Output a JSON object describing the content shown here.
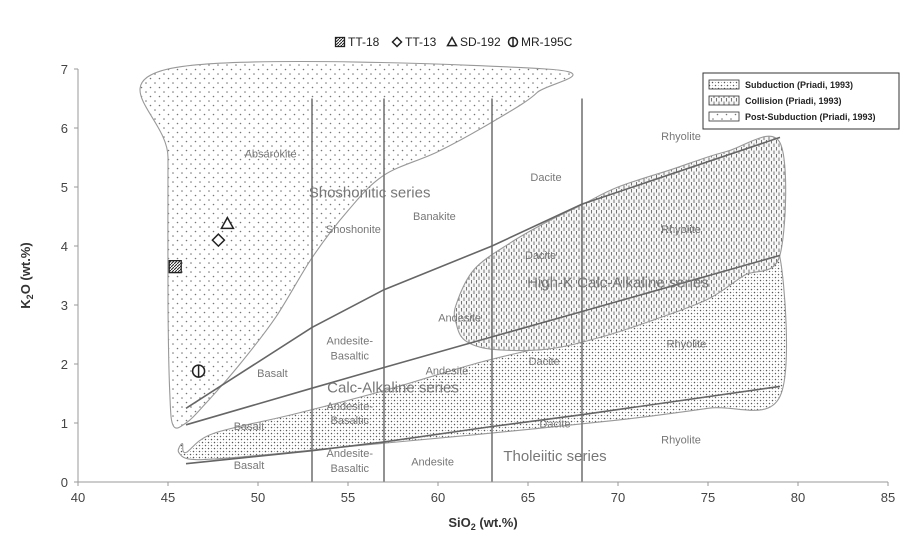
{
  "chart_data": {
    "type": "scatter",
    "xlabel_base": "SiO",
    "xlabel_sub": "2",
    "xlabel_unit": " (wt.%)",
    "ylabel_base": "K",
    "ylabel_sub": "2",
    "ylabel_rest": "O (wt.%)",
    "xlim": [
      40,
      85
    ],
    "ylim": [
      0,
      7
    ],
    "xticks": [
      40,
      45,
      50,
      55,
      60,
      65,
      70,
      75,
      80,
      85
    ],
    "yticks": [
      0,
      1,
      2,
      3,
      4,
      5,
      6,
      7
    ],
    "series": [
      {
        "name": "TT-18",
        "marker": "square-hatched",
        "points": [
          [
            45.4,
            3.65
          ]
        ]
      },
      {
        "name": "TT-13",
        "marker": "diamond",
        "points": [
          [
            47.8,
            4.1
          ]
        ]
      },
      {
        "name": "SD-192",
        "marker": "triangle",
        "points": [
          [
            48.3,
            4.38
          ]
        ]
      },
      {
        "name": "MR-195C",
        "marker": "circle-vline",
        "points": [
          [
            46.7,
            1.88
          ]
        ]
      }
    ],
    "region_legend": [
      {
        "label": "Subduction (Priadi, 1993)",
        "pattern": "dense-dots"
      },
      {
        "label": "Collision (Priadi, 1993)",
        "pattern": "vertical-dashes"
      },
      {
        "label": "Post-Subduction (Priadi, 1993)",
        "pattern": "sparse-dots"
      }
    ],
    "regions": [
      {
        "name": "Post-Subduction (Priadi, 1993)",
        "pattern": "sparse-dots",
        "outline": [
          [
            45,
            7
          ],
          [
            66,
            7
          ],
          [
            65.5,
            6.6
          ],
          [
            63,
            6.1
          ],
          [
            60,
            5.6
          ],
          [
            57,
            5.2
          ],
          [
            55,
            4.6
          ],
          [
            53,
            3.8
          ],
          [
            51,
            2.8
          ],
          [
            49,
            2.0
          ],
          [
            47,
            1.3
          ],
          [
            46,
            1.0
          ],
          [
            45.3,
            0.95
          ],
          [
            45.1,
            1.5
          ],
          [
            45,
            3
          ],
          [
            45,
            5.5
          ]
        ]
      },
      {
        "name": "Subduction (Priadi, 1993)",
        "pattern": "dense-dots",
        "outline": [
          [
            46,
            0.5
          ],
          [
            47.5,
            0.82
          ],
          [
            52,
            1.15
          ],
          [
            57,
            1.55
          ],
          [
            62,
            2.0
          ],
          [
            66,
            2.3
          ],
          [
            70,
            2.6
          ],
          [
            73.5,
            2.95
          ],
          [
            76,
            3.4
          ],
          [
            77.5,
            3.75
          ],
          [
            79,
            3.8
          ],
          [
            79,
            1.45
          ],
          [
            75,
            1.25
          ],
          [
            70,
            1.05
          ],
          [
            62,
            0.8
          ],
          [
            55,
            0.6
          ],
          [
            50,
            0.45
          ],
          [
            46.5,
            0.38
          ],
          [
            45.6,
            0.5
          ],
          [
            45.8,
            0.65
          ]
        ]
      },
      {
        "name": "Collision (Priadi, 1993)",
        "pattern": "vertical-dashes",
        "outline": [
          [
            61,
            3.0
          ],
          [
            62,
            3.6
          ],
          [
            64,
            4.05
          ],
          [
            66,
            4.4
          ],
          [
            68,
            4.7
          ],
          [
            70,
            5.0
          ],
          [
            73,
            5.3
          ],
          [
            76,
            5.6
          ],
          [
            79,
            5.75
          ],
          [
            79,
            3.85
          ],
          [
            77,
            3.5
          ],
          [
            75,
            3.1
          ],
          [
            72,
            2.75
          ],
          [
            69,
            2.45
          ],
          [
            66,
            2.25
          ],
          [
            63,
            2.25
          ],
          [
            61.5,
            2.4
          ],
          [
            61,
            2.7
          ]
        ]
      }
    ],
    "boundary_lines": [
      [
        [
          46,
          1.25
        ],
        [
          53,
          2.62
        ],
        [
          57,
          3.26
        ],
        [
          63,
          4.0
        ],
        [
          68,
          4.71
        ],
        [
          79,
          5.84
        ]
      ],
      [
        [
          46,
          0.97
        ],
        [
          53,
          1.59
        ],
        [
          57,
          1.94
        ],
        [
          63,
          2.46
        ],
        [
          68,
          2.89
        ],
        [
          79,
          3.84
        ]
      ],
      [
        [
          46,
          0.31
        ],
        [
          53,
          0.53
        ],
        [
          57,
          0.68
        ],
        [
          63,
          0.94
        ],
        [
          68,
          1.14
        ],
        [
          79,
          1.62
        ]
      ]
    ],
    "vertical_lines": [
      {
        "x": 53,
        "from": 0,
        "to": 6.5
      },
      {
        "x": 57,
        "from": 0,
        "to": 6.5
      },
      {
        "x": 63,
        "from": 0,
        "to": 6.5
      },
      {
        "x": 68,
        "from": 0,
        "to": 6.5
      }
    ],
    "series_labels": [
      {
        "text": "Shoshonitic series",
        "x": 56.2,
        "y": 4.82,
        "size": 15
      },
      {
        "text": "High-K Calc-Alkaline series",
        "x": 70,
        "y": 3.3,
        "size": 15
      },
      {
        "text": "Calc-Alkaline series",
        "x": 57.5,
        "y": 1.52,
        "size": 15
      },
      {
        "text": "Tholeiitic series",
        "x": 66.5,
        "y": 0.36,
        "size": 15
      }
    ],
    "field_labels": [
      {
        "text": "Absarokite",
        "x": 50.7,
        "y": 5.5
      },
      {
        "text": "Shoshonite",
        "x": 55.3,
        "y": 4.22
      },
      {
        "text": "Banakite",
        "x": 59.8,
        "y": 4.44
      },
      {
        "text": "Dacite",
        "x": 66,
        "y": 5.1
      },
      {
        "text": "Rhyolite",
        "x": 73.5,
        "y": 5.8
      },
      {
        "text": "Dacite",
        "x": 65.7,
        "y": 3.78
      },
      {
        "text": "Rhyolite",
        "x": 73.5,
        "y": 4.22
      },
      {
        "text": "Andesite",
        "x": 61.2,
        "y": 2.72
      },
      {
        "text": "Andesite-",
        "x": 55.1,
        "y": 2.33
      },
      {
        "text": "Basaltic",
        "x": 55.1,
        "y": 2.08
      },
      {
        "text": "Basalt",
        "x": 50.8,
        "y": 1.78
      },
      {
        "text": "Andesite",
        "x": 60.5,
        "y": 1.82
      },
      {
        "text": "Dacite",
        "x": 65.9,
        "y": 1.98
      },
      {
        "text": "Rhyolite",
        "x": 73.8,
        "y": 2.28
      },
      {
        "text": "Andesite-",
        "x": 55.1,
        "y": 1.22
      },
      {
        "text": "Basaltic",
        "x": 55.1,
        "y": 0.98
      },
      {
        "text": "Basalt",
        "x": 49.5,
        "y": 0.88
      },
      {
        "text": "Dacite",
        "x": 66.5,
        "y": 0.92
      },
      {
        "text": "Rhyolite",
        "x": 73.5,
        "y": 0.65
      },
      {
        "text": "Basalt",
        "x": 49.5,
        "y": 0.22
      },
      {
        "text": "Andesite-",
        "x": 55.1,
        "y": 0.42
      },
      {
        "text": "Basaltic",
        "x": 55.1,
        "y": 0.17
      },
      {
        "text": "Andesite",
        "x": 59.7,
        "y": 0.28
      }
    ],
    "grid": false,
    "legend_position": "top-center"
  }
}
